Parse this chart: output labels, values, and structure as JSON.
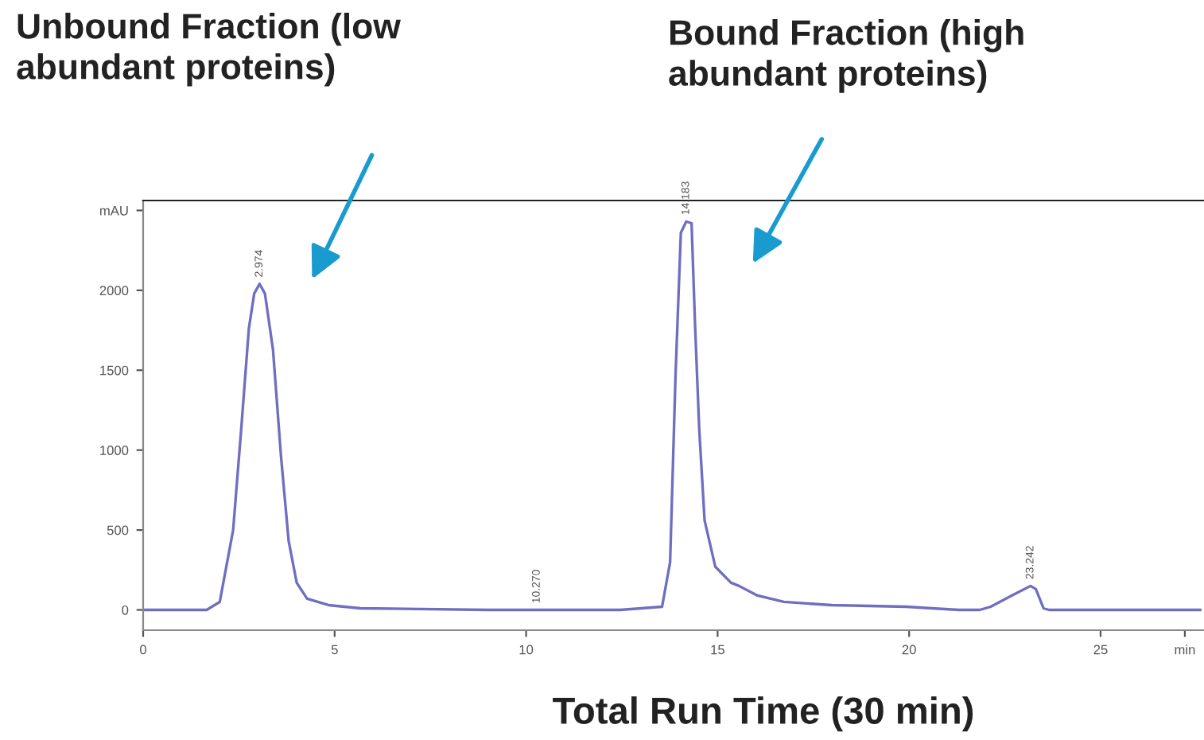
{
  "chart_data": {
    "type": "line",
    "xlabel": "Total Run Time (30 min)",
    "annotations": [
      "Unbound Fraction (low\nabundant proteins)",
      "Bound Fraction (high\nabundant proteins)",
      {
        "text": "2.974",
        "x": 3.04,
        "y": 2040
      },
      {
        "text": "10.270",
        "x": 10.28,
        "y": 0
      },
      {
        "text": "14.183",
        "x": 14.18,
        "y": 2430
      },
      {
        "text": "23.242",
        "x": 23.17,
        "y": 150
      }
    ],
    "series": [
      {
        "color": "#6f6fc0",
        "x": [
          0,
          1.66,
          2.0,
          2.35,
          2.56,
          2.76,
          2.9,
          3.04,
          3.18,
          3.39,
          3.6,
          3.8,
          4.01,
          4.28,
          4.84,
          5.67,
          8.98,
          12.45,
          13.55,
          13.76,
          13.9,
          14.04,
          14.18,
          14.32,
          14.41,
          14.52,
          14.66,
          14.94,
          15.35,
          15.56,
          16.04,
          16.73,
          17.98,
          19.92,
          21.3,
          21.85,
          22.13,
          22.68,
          23.17,
          23.31,
          23.51,
          23.65,
          27.6
        ],
        "values": [
          0,
          0,
          50,
          500,
          1130,
          1760,
          1980,
          2040,
          1980,
          1630,
          960,
          430,
          170,
          70,
          30,
          10,
          0,
          0,
          20,
          300,
          1460,
          2360,
          2430,
          2420,
          1790,
          1130,
          560,
          270,
          170,
          150,
          90,
          50,
          30,
          20,
          0,
          0,
          20,
          90,
          150,
          130,
          10,
          0,
          0
        ]
      }
    ],
    "xlim": [
      0,
      27.7
    ],
    "ylim": [
      -127,
      2562
    ],
    "xticks": [
      0,
      5,
      10,
      15,
      20,
      25,
      {
        "value": 27.2,
        "label": "min"
      }
    ],
    "yticks": [
      0,
      500,
      1000,
      1500,
      2000,
      {
        "value": 2500,
        "label": "mAU"
      }
    ],
    "grid": false,
    "legend": false,
    "marker": "none",
    "line_style": "solid"
  }
}
